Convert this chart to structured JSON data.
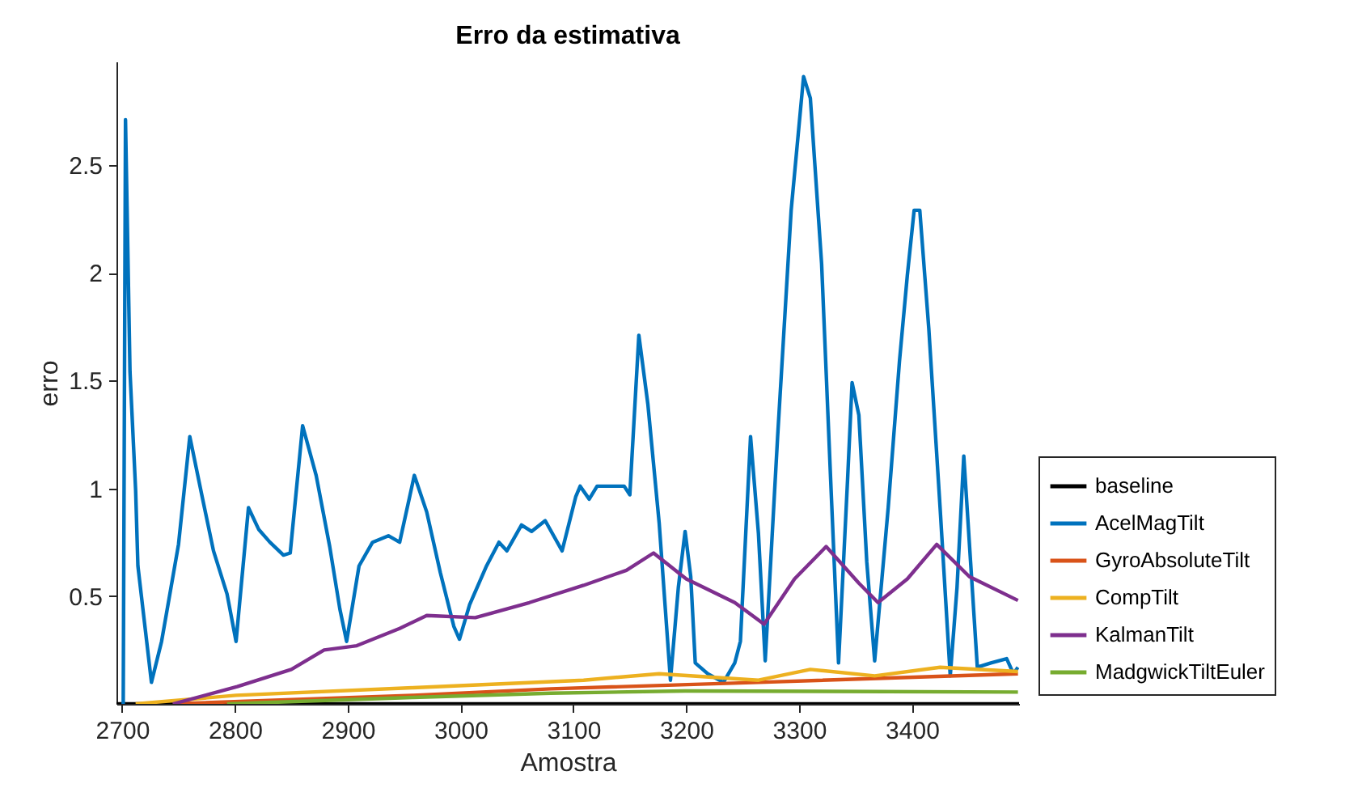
{
  "chart_data": {
    "type": "line",
    "title": "Erro da estimativa",
    "xlabel": "Amostra",
    "ylabel": "erro",
    "xlim": [
      2695,
      3495
    ],
    "ylim": [
      0,
      2.98
    ],
    "xticks": [
      2700,
      2800,
      2900,
      3000,
      3100,
      3200,
      3300,
      3400
    ],
    "yticks": [
      0.5,
      1,
      1.5,
      2,
      2.5
    ],
    "legend": "right",
    "series": [
      {
        "name": "baseline",
        "color": "#000000",
        "x": [
          2695,
          3495
        ],
        "values": [
          0,
          0
        ]
      },
      {
        "name": "AcelMagTilt",
        "color": "#0072bd",
        "x": [
          2701,
          2703,
          2707,
          2712,
          2714,
          2726,
          2735,
          2750,
          2760,
          2771,
          2781,
          2793,
          2801,
          2812,
          2821,
          2831,
          2843,
          2849,
          2860,
          2872,
          2884,
          2893,
          2899,
          2910,
          2922,
          2936,
          2946,
          2959,
          2970,
          2982,
          2994,
          2999,
          3008,
          3023,
          3034,
          3041,
          3054,
          3063,
          3075,
          3090,
          3102,
          3106,
          3114,
          3121,
          3145,
          3150,
          3158,
          3166,
          3176,
          3186,
          3193,
          3199,
          3204,
          3208,
          3219,
          3233,
          3243,
          3248,
          3257,
          3264,
          3270,
          3281,
          3293,
          3304,
          3310,
          3320,
          3328,
          3335,
          3343,
          3347,
          3353,
          3360,
          3367,
          3379,
          3389,
          3396,
          3402,
          3407,
          3415,
          3425,
          3434,
          3440,
          3446,
          3452,
          3458,
          3470,
          3484,
          3490,
          3494
        ],
        "values": [
          0,
          2.71,
          1.54,
          0.99,
          0.64,
          0.1,
          0.29,
          0.74,
          1.24,
          0.96,
          0.71,
          0.51,
          0.29,
          0.91,
          0.81,
          0.75,
          0.69,
          0.7,
          1.29,
          1.06,
          0.73,
          0.44,
          0.29,
          0.64,
          0.75,
          0.78,
          0.75,
          1.06,
          0.89,
          0.61,
          0.36,
          0.3,
          0.46,
          0.64,
          0.75,
          0.71,
          0.83,
          0.8,
          0.85,
          0.71,
          0.96,
          1.01,
          0.95,
          1.01,
          1.01,
          0.97,
          1.71,
          1.39,
          0.84,
          0.11,
          0.54,
          0.8,
          0.59,
          0.19,
          0.14,
          0.1,
          0.19,
          0.29,
          1.24,
          0.79,
          0.2,
          1.24,
          2.29,
          2.91,
          2.81,
          2.04,
          1.04,
          0.19,
          1.04,
          1.49,
          1.34,
          0.66,
          0.2,
          0.91,
          1.59,
          1.99,
          2.29,
          2.29,
          1.74,
          0.91,
          0.13,
          0.54,
          1.15,
          0.66,
          0.17,
          0.19,
          0.21,
          0.14,
          0.17
        ]
      },
      {
        "name": "GyroAbsoluteTilt",
        "color": "#d95319",
        "x": [
          2745,
          2958,
          3080,
          3264,
          3494
        ],
        "values": [
          0,
          0.04,
          0.07,
          0.1,
          0.14
        ]
      },
      {
        "name": "CompTilt",
        "color": "#edb120",
        "x": [
          2712,
          2801,
          2958,
          3109,
          3176,
          3264,
          3310,
          3367,
          3425,
          3494
        ],
        "values": [
          0,
          0.04,
          0.075,
          0.11,
          0.14,
          0.11,
          0.16,
          0.13,
          0.17,
          0.15
        ]
      },
      {
        "name": "KalmanTilt",
        "color": "#7e2f8e",
        "x": [
          2745,
          2802,
          2850,
          2879,
          2908,
          2946,
          2970,
          3013,
          3061,
          3109,
          3147,
          3171,
          3200,
          3243,
          3269,
          3296,
          3324,
          3353,
          3370,
          3396,
          3422,
          3451,
          3494
        ],
        "values": [
          0,
          0.08,
          0.16,
          0.25,
          0.27,
          0.35,
          0.41,
          0.4,
          0.47,
          0.55,
          0.62,
          0.7,
          0.58,
          0.47,
          0.37,
          0.58,
          0.73,
          0.56,
          0.47,
          0.58,
          0.74,
          0.59,
          0.48
        ]
      },
      {
        "name": "MadgwickTiltEuler",
        "color": "#77ac30",
        "x": [
          2793,
          2958,
          3080,
          3199,
          3494
        ],
        "values": [
          0,
          0.03,
          0.05,
          0.06,
          0.055
        ]
      }
    ]
  }
}
